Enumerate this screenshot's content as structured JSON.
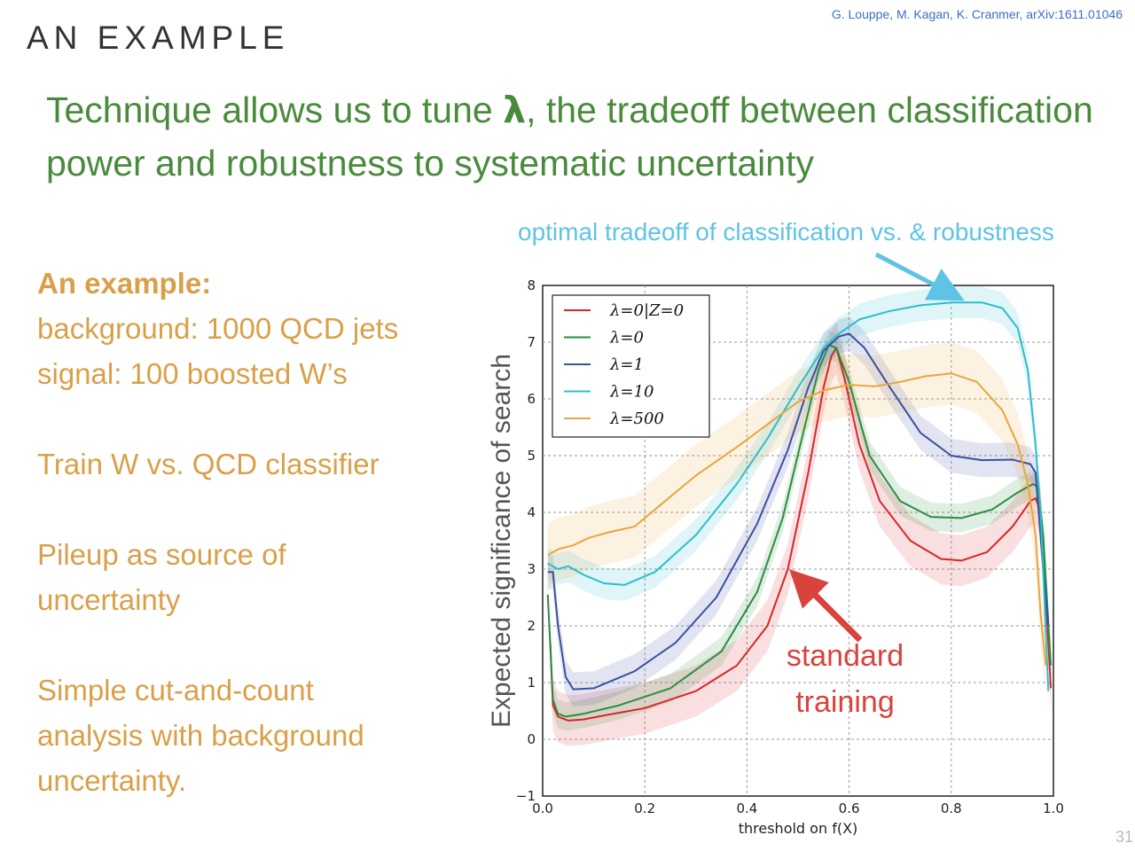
{
  "slide": {
    "title": "AN EXAMPLE",
    "citation": "G. Louppe, M. Kagan, K. Cranmer, arXiv:1611.01046",
    "headline_part1": "Technique allows us to tune ",
    "headline_lambda": "λ",
    "headline_part2": ", the tradeoff between classification power and robustness to systematic uncertainty",
    "page_number": "31"
  },
  "left_panel": {
    "heading": "An example:",
    "line1": "background: 1000 QCD jets",
    "line2": "signal: 100 boosted W’s",
    "line3": "Train W vs. QCD classifier",
    "line4": "Pileup as source of",
    "line5": "uncertainty",
    "line6": "Simple cut-and-count",
    "line7": "analysis with background",
    "line8": "uncertainty."
  },
  "annotations": {
    "tradeoff": "optimal tradeoff of classification vs. & robustness",
    "standard_line1": "standard",
    "standard_line2": "training"
  },
  "colors": {
    "red": "#d62728",
    "green": "#2a8d3f",
    "blue": "#3b4fa3",
    "cyan": "#2bbfc9",
    "orange": "#e8a63c",
    "annotation_cyan": "#5fc3e6",
    "annotation_red": "#d8433d"
  },
  "chart_data": {
    "type": "line",
    "xlabel": "threshold on f(X)",
    "ylabel": "Expected significance of search",
    "xlim": [
      0.0,
      1.0
    ],
    "ylim": [
      -1,
      8
    ],
    "xticks": [
      0.0,
      0.2,
      0.4,
      0.6,
      0.8,
      1.0
    ],
    "xtick_labels": [
      "0.0",
      "0.2",
      "0.4",
      "0.6",
      "0.8",
      "1.0"
    ],
    "yticks": [
      -1,
      0,
      1,
      2,
      3,
      4,
      5,
      6,
      7,
      8
    ],
    "ytick_labels": [
      "−1",
      "0",
      "1",
      "2",
      "3",
      "4",
      "5",
      "6",
      "7",
      "8"
    ],
    "grid": true,
    "legend_position": "top-left",
    "series": [
      {
        "name": "λ=0|Z=0",
        "color": "#d62728",
        "band": 0.45,
        "points": [
          [
            0.015,
            1.7
          ],
          [
            0.02,
            0.6
          ],
          [
            0.03,
            0.4
          ],
          [
            0.05,
            0.33
          ],
          [
            0.08,
            0.35
          ],
          [
            0.12,
            0.42
          ],
          [
            0.2,
            0.55
          ],
          [
            0.3,
            0.85
          ],
          [
            0.38,
            1.3
          ],
          [
            0.44,
            2.0
          ],
          [
            0.48,
            3.0
          ],
          [
            0.52,
            4.7
          ],
          [
            0.55,
            6.2
          ],
          [
            0.565,
            6.75
          ],
          [
            0.575,
            6.9
          ],
          [
            0.59,
            6.4
          ],
          [
            0.62,
            5.2
          ],
          [
            0.66,
            4.2
          ],
          [
            0.72,
            3.5
          ],
          [
            0.78,
            3.18
          ],
          [
            0.82,
            3.15
          ],
          [
            0.87,
            3.3
          ],
          [
            0.92,
            3.75
          ],
          [
            0.955,
            4.2
          ],
          [
            0.965,
            4.25
          ],
          [
            0.975,
            4.0
          ],
          [
            0.985,
            2.5
          ],
          [
            0.995,
            0.9
          ]
        ]
      },
      {
        "name": "λ=0",
        "color": "#2a8d3f",
        "band": 0.25,
        "points": [
          [
            0.01,
            2.55
          ],
          [
            0.02,
            0.7
          ],
          [
            0.03,
            0.45
          ],
          [
            0.045,
            0.4
          ],
          [
            0.08,
            0.45
          ],
          [
            0.15,
            0.6
          ],
          [
            0.25,
            0.9
          ],
          [
            0.35,
            1.55
          ],
          [
            0.42,
            2.6
          ],
          [
            0.47,
            3.9
          ],
          [
            0.51,
            5.4
          ],
          [
            0.54,
            6.5
          ],
          [
            0.56,
            6.95
          ],
          [
            0.575,
            6.9
          ],
          [
            0.6,
            6.3
          ],
          [
            0.64,
            5.0
          ],
          [
            0.7,
            4.2
          ],
          [
            0.76,
            3.92
          ],
          [
            0.82,
            3.9
          ],
          [
            0.88,
            4.05
          ],
          [
            0.93,
            4.35
          ],
          [
            0.96,
            4.5
          ],
          [
            0.97,
            4.45
          ],
          [
            0.98,
            3.6
          ],
          [
            0.995,
            1.3
          ]
        ]
      },
      {
        "name": "λ=1",
        "color": "#3b4fa3",
        "band": 0.3,
        "points": [
          [
            0.01,
            2.95
          ],
          [
            0.02,
            2.95
          ],
          [
            0.03,
            2.0
          ],
          [
            0.045,
            1.1
          ],
          [
            0.06,
            0.88
          ],
          [
            0.1,
            0.9
          ],
          [
            0.18,
            1.2
          ],
          [
            0.26,
            1.7
          ],
          [
            0.34,
            2.5
          ],
          [
            0.42,
            3.8
          ],
          [
            0.48,
            5.1
          ],
          [
            0.52,
            6.2
          ],
          [
            0.55,
            6.85
          ],
          [
            0.58,
            7.1
          ],
          [
            0.6,
            7.15
          ],
          [
            0.63,
            6.9
          ],
          [
            0.68,
            6.2
          ],
          [
            0.74,
            5.4
          ],
          [
            0.8,
            5.0
          ],
          [
            0.86,
            4.92
          ],
          [
            0.92,
            4.93
          ],
          [
            0.955,
            4.85
          ],
          [
            0.965,
            4.7
          ],
          [
            0.98,
            3.0
          ],
          [
            0.99,
            2.0
          ]
        ]
      },
      {
        "name": "λ=10",
        "color": "#2bbfc9",
        "band": 0.28,
        "points": [
          [
            0.01,
            3.1
          ],
          [
            0.03,
            3.0
          ],
          [
            0.05,
            3.05
          ],
          [
            0.08,
            2.9
          ],
          [
            0.12,
            2.75
          ],
          [
            0.16,
            2.72
          ],
          [
            0.22,
            2.95
          ],
          [
            0.3,
            3.6
          ],
          [
            0.38,
            4.5
          ],
          [
            0.44,
            5.3
          ],
          [
            0.5,
            6.2
          ],
          [
            0.55,
            6.9
          ],
          [
            0.58,
            7.15
          ],
          [
            0.62,
            7.4
          ],
          [
            0.68,
            7.55
          ],
          [
            0.74,
            7.65
          ],
          [
            0.8,
            7.7
          ],
          [
            0.86,
            7.7
          ],
          [
            0.9,
            7.6
          ],
          [
            0.93,
            7.25
          ],
          [
            0.95,
            6.5
          ],
          [
            0.965,
            5.2
          ],
          [
            0.975,
            4.0
          ],
          [
            0.99,
            0.85
          ]
        ]
      },
      {
        "name": "λ=500",
        "color": "#e8a63c",
        "band": 0.55,
        "points": [
          [
            0.01,
            3.25
          ],
          [
            0.03,
            3.35
          ],
          [
            0.06,
            3.42
          ],
          [
            0.09,
            3.55
          ],
          [
            0.13,
            3.65
          ],
          [
            0.18,
            3.75
          ],
          [
            0.24,
            4.2
          ],
          [
            0.3,
            4.65
          ],
          [
            0.38,
            5.15
          ],
          [
            0.44,
            5.55
          ],
          [
            0.5,
            5.95
          ],
          [
            0.55,
            6.15
          ],
          [
            0.6,
            6.25
          ],
          [
            0.65,
            6.22
          ],
          [
            0.7,
            6.3
          ],
          [
            0.75,
            6.4
          ],
          [
            0.8,
            6.45
          ],
          [
            0.85,
            6.3
          ],
          [
            0.9,
            5.8
          ],
          [
            0.93,
            5.2
          ],
          [
            0.95,
            4.5
          ],
          [
            0.965,
            3.6
          ],
          [
            0.975,
            2.2
          ],
          [
            0.985,
            1.3
          ]
        ]
      }
    ]
  }
}
